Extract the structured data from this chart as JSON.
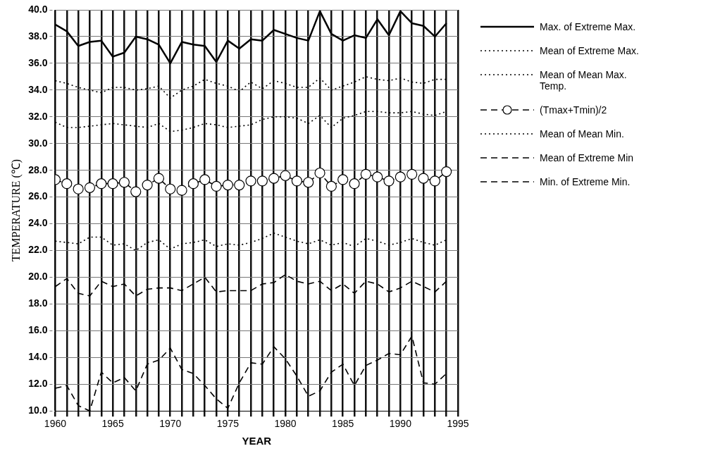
{
  "chart_data": {
    "type": "line",
    "xlabel": "YEAR",
    "ylabel": "TEMPERATURE (℃)",
    "x": [
      1960,
      1961,
      1962,
      1963,
      1964,
      1965,
      1966,
      1967,
      1968,
      1969,
      1970,
      1971,
      1972,
      1973,
      1974,
      1975,
      1976,
      1977,
      1978,
      1979,
      1980,
      1981,
      1982,
      1983,
      1984,
      1985,
      1986,
      1987,
      1988,
      1989,
      1990,
      1991,
      1992,
      1993,
      1994
    ],
    "xlim": [
      1960,
      1995
    ],
    "xticks": [
      1960,
      {
        "value": 1961,
        "label": null
      },
      {
        "value": 1962,
        "label": null
      },
      {
        "value": 1963,
        "label": null
      },
      {
        "value": 1964,
        "label": null
      },
      1965,
      {
        "value": 1966,
        "label": null
      },
      {
        "value": 1967,
        "label": null
      },
      {
        "value": 1968,
        "label": null
      },
      {
        "value": 1969,
        "label": null
      },
      1970,
      {
        "value": 1971,
        "label": null
      },
      {
        "value": 1972,
        "label": null
      },
      {
        "value": 1973,
        "label": null
      },
      {
        "value": 1974,
        "label": null
      },
      1975,
      {
        "value": 1976,
        "label": null
      },
      {
        "value": 1977,
        "label": null
      },
      {
        "value": 1978,
        "label": null
      },
      {
        "value": 1979,
        "label": null
      },
      1980,
      {
        "value": 1981,
        "label": null
      },
      {
        "value": 1982,
        "label": null
      },
      {
        "value": 1983,
        "label": null
      },
      {
        "value": 1984,
        "label": null
      },
      1985,
      {
        "value": 1986,
        "label": null
      },
      {
        "value": 1987,
        "label": null
      },
      {
        "value": 1988,
        "label": null
      },
      {
        "value": 1989,
        "label": null
      },
      1990,
      {
        "value": 1991,
        "label": null
      },
      {
        "value": 1992,
        "label": null
      },
      {
        "value": 1993,
        "label": null
      },
      {
        "value": 1994,
        "label": null
      },
      1995
    ],
    "ylim": [
      10,
      40
    ],
    "yticks": [
      {
        "value": 10,
        "label": "10.0"
      },
      {
        "value": 12,
        "label": "12.0"
      },
      {
        "value": 14,
        "label": "14.0"
      },
      {
        "value": 16,
        "label": "16.0"
      },
      {
        "value": 18,
        "label": "18.0"
      },
      {
        "value": 20,
        "label": "20.0"
      },
      {
        "value": 22,
        "label": "22.0"
      },
      {
        "value": 24,
        "label": "24.0"
      },
      {
        "value": 26,
        "label": "26.0"
      },
      {
        "value": 28,
        "label": "28.0"
      },
      {
        "value": 30,
        "label": "30.0"
      },
      {
        "value": 32,
        "label": "32.0"
      },
      {
        "value": 34,
        "label": "34.0"
      },
      {
        "value": 36,
        "label": "36.0"
      },
      {
        "value": 38,
        "label": "38.0"
      },
      {
        "value": 40,
        "label": "40.0"
      }
    ],
    "grid": true,
    "legend": "right",
    "series": [
      {
        "name": "Max. of Extreme Max.",
        "color": "#000000",
        "line_style": "solid",
        "marker": "none",
        "values": [
          38.9,
          38.4,
          37.3,
          37.6,
          37.7,
          36.5,
          36.8,
          38.0,
          37.8,
          37.4,
          36.0,
          37.6,
          37.4,
          37.3,
          36.1,
          37.7,
          37.1,
          37.8,
          37.7,
          38.5,
          38.2,
          37.9,
          37.7,
          39.9,
          38.2,
          37.7,
          38.1,
          37.9,
          39.3,
          38.1,
          39.9,
          39.0,
          38.8,
          38.0,
          39.0
        ]
      },
      {
        "name": "Mean of Extreme Max.",
        "color": "#000000",
        "line_style": "dotted",
        "marker": "none",
        "values": [
          34.7,
          34.5,
          34.2,
          34.0,
          33.8,
          34.2,
          34.2,
          34.0,
          34.1,
          34.3,
          33.4,
          34.0,
          34.3,
          34.8,
          34.5,
          34.3,
          33.9,
          34.6,
          34.1,
          34.7,
          34.5,
          34.2,
          34.2,
          34.9,
          34.0,
          34.3,
          34.6,
          35.0,
          34.8,
          34.7,
          34.9,
          34.6,
          34.5,
          34.8,
          34.8
        ]
      },
      {
        "name": "Mean of Mean Max. Temp.",
        "color": "#000000",
        "line_style": "dotted",
        "marker": "none",
        "values": [
          31.6,
          31.2,
          31.2,
          31.3,
          31.4,
          31.5,
          31.4,
          31.3,
          31.2,
          31.5,
          30.9,
          31.0,
          31.2,
          31.5,
          31.4,
          31.2,
          31.3,
          31.4,
          31.8,
          32.0,
          32.0,
          31.9,
          31.5,
          32.1,
          31.2,
          31.9,
          32.1,
          32.4,
          32.4,
          32.3,
          32.3,
          32.4,
          32.2,
          32.1,
          32.4
        ]
      },
      {
        "name": "(Tmax+Tmin)/2",
        "color": "#000000",
        "line_style": "dashed",
        "marker": "circle",
        "values": [
          27.3,
          27.0,
          26.6,
          26.7,
          27.0,
          27.0,
          27.1,
          26.4,
          26.9,
          27.4,
          26.6,
          26.5,
          27.0,
          27.3,
          26.8,
          26.9,
          26.9,
          27.2,
          27.2,
          27.4,
          27.6,
          27.2,
          27.1,
          27.8,
          26.8,
          27.3,
          27.0,
          27.7,
          27.5,
          27.2,
          27.5,
          27.7,
          27.4,
          27.2,
          27.9
        ]
      },
      {
        "name": "Mean of Mean Min.",
        "color": "#000000",
        "line_style": "dotted",
        "marker": "none",
        "values": [
          22.7,
          22.6,
          22.5,
          23.0,
          23.0,
          22.4,
          22.5,
          22.0,
          22.6,
          22.8,
          22.1,
          22.5,
          22.6,
          22.8,
          22.3,
          22.5,
          22.4,
          22.6,
          22.9,
          23.3,
          23.0,
          22.7,
          22.5,
          22.8,
          22.4,
          22.6,
          22.3,
          22.9,
          22.7,
          22.4,
          22.6,
          22.9,
          22.6,
          22.4,
          22.8
        ]
      },
      {
        "name": "Mean of Extreme Min",
        "color": "#000000",
        "line_style": "dashed",
        "marker": "none",
        "values": [
          19.3,
          19.9,
          18.8,
          18.6,
          19.7,
          19.3,
          19.5,
          18.6,
          19.1,
          19.2,
          19.2,
          19.0,
          19.5,
          20.0,
          18.9,
          19.0,
          19.0,
          19.0,
          19.5,
          19.6,
          20.2,
          19.7,
          19.5,
          19.7,
          19.0,
          19.5,
          18.8,
          19.7,
          19.5,
          18.9,
          19.2,
          19.7,
          19.3,
          18.9,
          19.7
        ]
      },
      {
        "name": "Min. of Extreme Min.",
        "color": "#000000",
        "line_style": "dashed",
        "marker": "none",
        "values": [
          11.7,
          11.9,
          10.4,
          10.0,
          12.9,
          12.1,
          12.5,
          11.5,
          13.5,
          13.8,
          14.7,
          13.1,
          12.8,
          11.9,
          10.9,
          10.2,
          12.1,
          13.6,
          13.5,
          14.8,
          13.9,
          12.6,
          11.1,
          11.5,
          12.9,
          13.5,
          11.9,
          13.4,
          13.8,
          14.3,
          14.2,
          15.6,
          12.1,
          12.0,
          12.8
        ]
      }
    ]
  }
}
